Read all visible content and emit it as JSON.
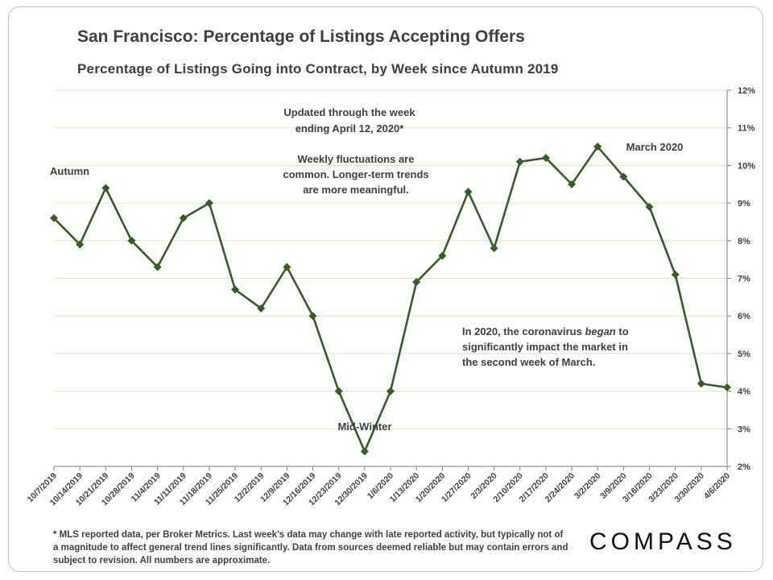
{
  "title": "San Francisco: Percentage of Listings Accepting Offers",
  "subtitle": "Percentage of Listings Going into Contract, by Week since Autumn 2019",
  "footnote": "* MLS reported data, per Broker Metrics. Last week’s data may change with late reported activity, but typically not of a magnitude to affect general trend lines significantly. Data from sources deemed reliable but may contain errors and subject to revision. All numbers are approximate.",
  "logo": "COMPASS",
  "colors": {
    "line": "#3b5a2a",
    "grid": "#d6e6c6",
    "axis": "#7f7f7f",
    "text": "#3f3f3f",
    "tick": "#404040"
  },
  "annotations": {
    "updated": [
      "Updated through the week",
      "ending April 12, 2020*"
    ],
    "fluctuations": [
      "Weekly fluctuations are",
      "common. Longer-term trends",
      "are more meaningful."
    ],
    "autumn": "Autumn",
    "mid_winter": "Mid-Winter",
    "march": "March 2020",
    "coronavirus": [
      "In 2020, the coronavirus ",
      "began",
      " to",
      "significantly impact the market in",
      "the second week of March."
    ]
  },
  "chart_data": {
    "type": "line",
    "title": "San Francisco: Percentage of Listings Accepting Offers",
    "xlabel": "",
    "ylabel": "",
    "y_axis_side": "right",
    "ylim": [
      2,
      12
    ],
    "yticks": [
      2,
      3,
      4,
      5,
      6,
      7,
      8,
      9,
      10,
      11,
      12
    ],
    "ytick_labels": [
      "2%",
      "3%",
      "4%",
      "5%",
      "6%",
      "7%",
      "8%",
      "9%",
      "10%",
      "11%",
      "12%"
    ],
    "grid": true,
    "categories": [
      "10/7/2019",
      "10/14/2019",
      "10/21/2019",
      "10/28/2019",
      "11/4/2019",
      "11/11/2019",
      "11/18/2019",
      "11/25/2019",
      "12/2/2019",
      "12/9/2019",
      "12/16/2019",
      "12/23/2019",
      "12/30/2019",
      "1/6/2020",
      "1/13/2020",
      "1/20/2020",
      "1/27/2020",
      "2/3/2020",
      "2/10/2020",
      "2/17/2020",
      "2/24/2020",
      "3/2/2020",
      "3/9/2020",
      "3/16/2020",
      "3/23/2020",
      "3/30/2020",
      "4/6/2020"
    ],
    "series": [
      {
        "name": "% of listings going into contract",
        "values": [
          8.6,
          7.9,
          9.4,
          8.0,
          7.3,
          8.6,
          9.0,
          6.7,
          6.2,
          7.3,
          6.0,
          4.0,
          2.4,
          4.0,
          6.9,
          7.6,
          9.3,
          7.8,
          10.1,
          10.2,
          9.5,
          10.5,
          9.7,
          8.9,
          7.1,
          4.2,
          4.1
        ]
      }
    ]
  }
}
